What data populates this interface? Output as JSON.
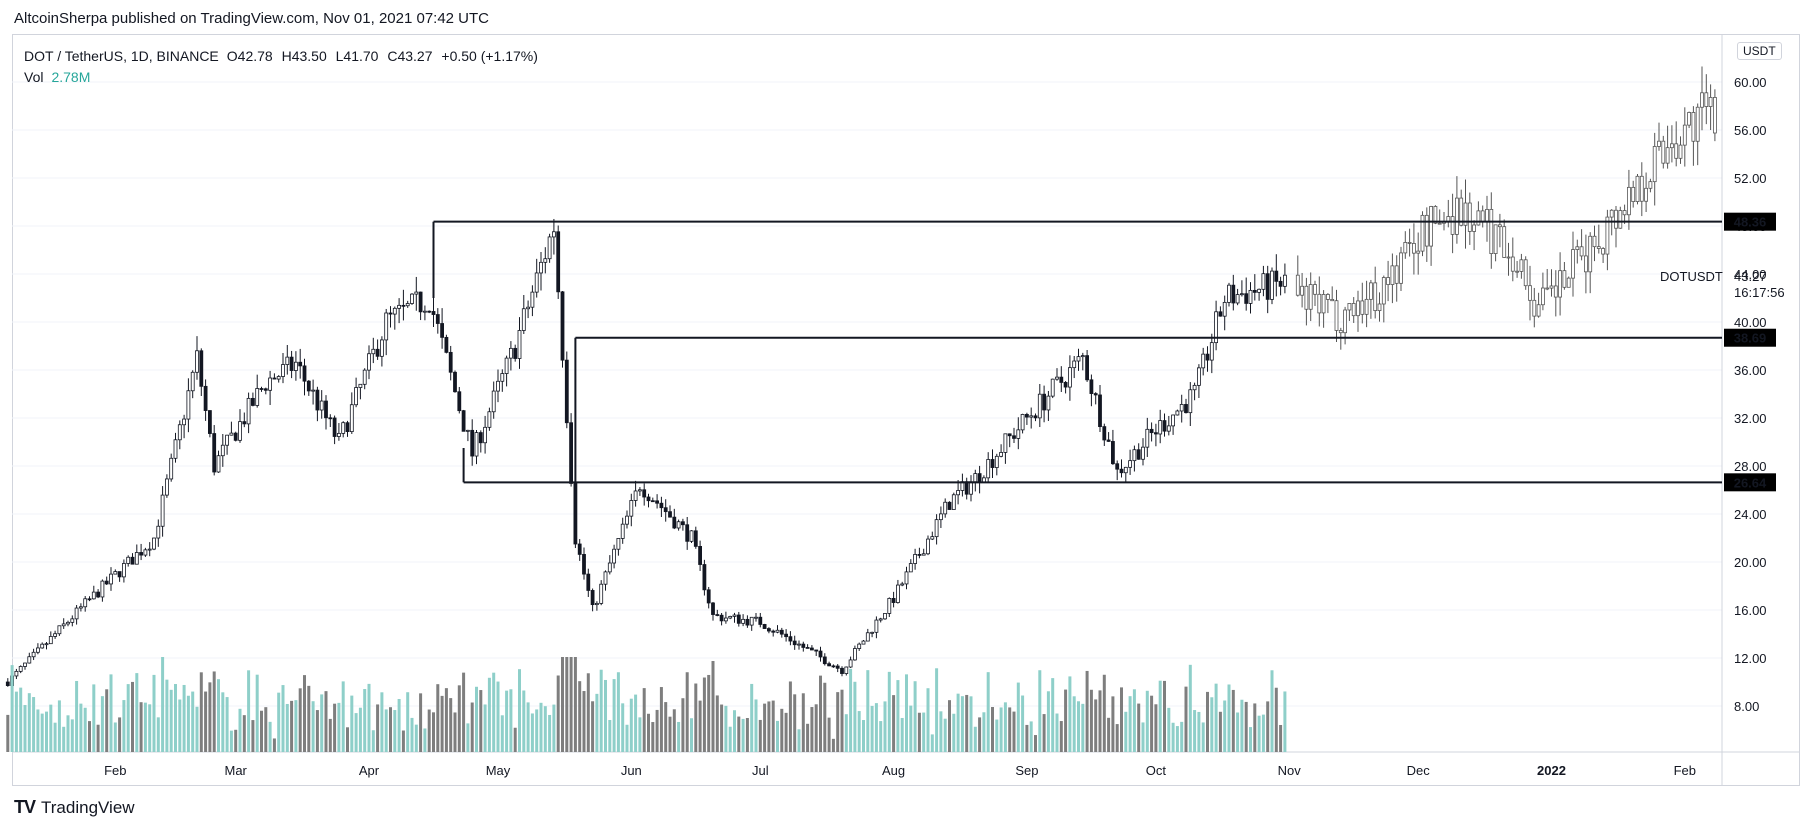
{
  "header": {
    "publish_line": "AltcoinSherpa published on TradingView.com, Nov 01, 2021 07:42 UTC"
  },
  "legend": {
    "symbol": "DOT / TetherUS, 1D, BINANCE",
    "open": "O42.78",
    "high": "H43.50",
    "low": "L41.70",
    "close": "C43.27",
    "change": "+0.50 (+1.17%)",
    "vol_label": "Vol",
    "vol_value": "2.78M"
  },
  "price_scale": {
    "unit": "USDT",
    "ticks": [
      "60.00",
      "56.00",
      "52.00",
      "48.00",
      "44.00",
      "40.00",
      "36.00",
      "32.00",
      "28.00",
      "24.00",
      "20.00",
      "16.00",
      "12.00",
      "8.00"
    ],
    "symbol_label": "DOTUSDT",
    "last_price": "43.27",
    "countdown": "16:17:56"
  },
  "time_axis": {
    "labels": [
      "Feb",
      "Mar",
      "Apr",
      "May",
      "Jun",
      "Jul",
      "Aug",
      "Sep",
      "Oct",
      "Nov",
      "Dec",
      "2022",
      "Feb"
    ]
  },
  "footer": {
    "brand": "TradingView"
  },
  "chart_data": {
    "type": "candlestick-ohlc",
    "symbol": "DOTUSDT",
    "timeframe": "1D",
    "ylim": [
      4,
      63
    ],
    "levels": [
      {
        "price": 48.36,
        "label": "48.36",
        "start": "2021-04-16"
      },
      {
        "price": 38.69,
        "label": "38.69",
        "start": "2021-05-19"
      },
      {
        "price": 26.64,
        "label": "26.64",
        "start": "2021-04-23"
      }
    ],
    "keypoints": [
      [
        "2021-01-07",
        10.0
      ],
      [
        "2021-01-25",
        16.5
      ],
      [
        "2021-02-10",
        22.0
      ],
      [
        "2021-02-20",
        37.0
      ],
      [
        "2021-02-24",
        28.0
      ],
      [
        "2021-03-08",
        35.0
      ],
      [
        "2021-03-15",
        36.5
      ],
      [
        "2021-03-25",
        30.0
      ],
      [
        "2021-04-05",
        40.0
      ],
      [
        "2021-04-15",
        42.0
      ],
      [
        "2021-04-25",
        29.0
      ],
      [
        "2021-05-05",
        38.0
      ],
      [
        "2021-05-14",
        48.0
      ],
      [
        "2021-05-19",
        22.0
      ],
      [
        "2021-05-23",
        16.0
      ],
      [
        "2021-06-03",
        26.5
      ],
      [
        "2021-06-15",
        22.0
      ],
      [
        "2021-06-20",
        15.5
      ],
      [
        "2021-07-01",
        15.0
      ],
      [
        "2021-07-20",
        11.0
      ],
      [
        "2021-08-01",
        17.0
      ],
      [
        "2021-08-14",
        25.0
      ],
      [
        "2021-08-20",
        27.0
      ],
      [
        "2021-09-01",
        32.0
      ],
      [
        "2021-09-14",
        37.0
      ],
      [
        "2021-09-22",
        27.5
      ],
      [
        "2021-10-01",
        31.0
      ],
      [
        "2021-10-10",
        34.0
      ],
      [
        "2021-10-17",
        42.0
      ],
      [
        "2021-10-31",
        43.27
      ]
    ],
    "volume_visible_until": "2021-10-31",
    "forward_candles": [
      [
        "2021-11-03",
        42.0
      ],
      [
        "2021-11-12",
        40.5
      ],
      [
        "2021-11-22",
        42.5
      ],
      [
        "2021-12-02",
        47.5
      ],
      [
        "2021-12-10",
        49.5
      ],
      [
        "2021-12-22",
        46.5
      ],
      [
        "2021-12-29",
        41.0
      ],
      [
        "2022-01-10",
        46.0
      ],
      [
        "2022-01-18",
        50.0
      ],
      [
        "2022-01-28",
        55.0
      ],
      [
        "2022-02-05",
        57.0
      ],
      [
        "2022-02-14",
        58.0
      ]
    ]
  },
  "colors": {
    "candle": "#131722",
    "level_line": "#131722",
    "vol_up": "#8ecfc9",
    "vol_down": "#7e7e7e",
    "grid": "#f0f3fa"
  }
}
